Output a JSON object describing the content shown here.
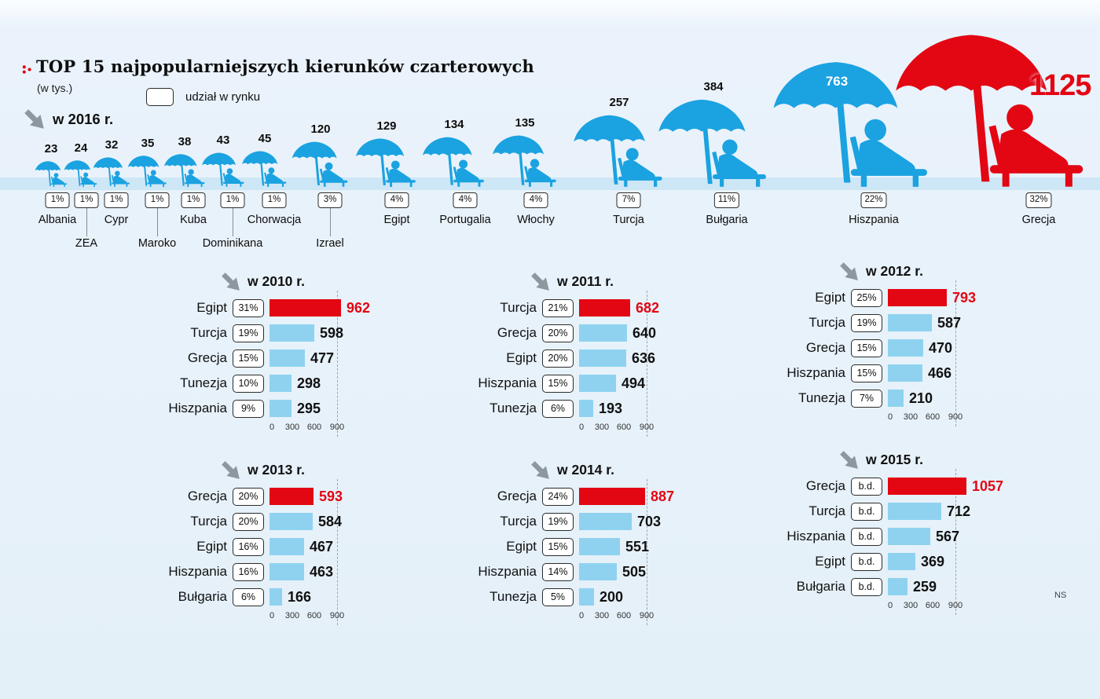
{
  "header": {
    "title": "TOP 15 najpopularniejszych kierunków czarterowych",
    "subtitle": "(w tys.)",
    "legend_label": "udział w rynku",
    "year_label": "w 2016 r."
  },
  "colors": {
    "red": "#e30613",
    "blue": "#1ba2e1",
    "bar_blue": "#8fd2f0"
  },
  "chart_data": [
    {
      "type": "pictogram-bar",
      "title": "w 2016 r.",
      "unit": "w tys.",
      "legend": "udział w rynku",
      "categories": [
        "Albania",
        "ZEA",
        "Cypr",
        "Maroko",
        "Kuba",
        "Dominikana",
        "Chorwacja",
        "Izrael",
        "Egipt",
        "Portugalia",
        "Włochy",
        "Turcja",
        "Bułgaria",
        "Hiszpania",
        "Grecja"
      ],
      "values": [
        23,
        24,
        32,
        35,
        38,
        43,
        45,
        120,
        129,
        134,
        135,
        257,
        384,
        763,
        1125
      ],
      "shares": [
        "1%",
        "1%",
        "1%",
        "1%",
        "1%",
        "1%",
        "1%",
        "3%",
        "4%",
        "4%",
        "4%",
        "7%",
        "11%",
        "22%",
        "32%"
      ],
      "highlight_index": 14
    },
    {
      "type": "bar",
      "title": "w 2010 r.",
      "categories": [
        "Egipt",
        "Turcja",
        "Grecja",
        "Tunezja",
        "Hiszpania"
      ],
      "values": [
        962,
        598,
        477,
        298,
        295
      ],
      "shares": [
        "31%",
        "19%",
        "15%",
        "10%",
        "9%"
      ],
      "xticks": [
        "0",
        "300",
        "600",
        "900"
      ],
      "xlim": [
        0,
        900
      ],
      "highlight_index": 0
    },
    {
      "type": "bar",
      "title": "w 2011 r.",
      "categories": [
        "Turcja",
        "Grecja",
        "Egipt",
        "Hiszpania",
        "Tunezja"
      ],
      "values": [
        682,
        640,
        636,
        494,
        193
      ],
      "shares": [
        "21%",
        "20%",
        "20%",
        "15%",
        "6%"
      ],
      "xticks": [
        "0",
        "300",
        "600",
        "900"
      ],
      "xlim": [
        0,
        900
      ],
      "highlight_index": 0
    },
    {
      "type": "bar",
      "title": "w 2012 r.",
      "categories": [
        "Egipt",
        "Turcja",
        "Grecja",
        "Hiszpania",
        "Tunezja"
      ],
      "values": [
        793,
        587,
        470,
        466,
        210
      ],
      "shares": [
        "25%",
        "19%",
        "15%",
        "15%",
        "7%"
      ],
      "xticks": [
        "0",
        "300",
        "600",
        "900"
      ],
      "xlim": [
        0,
        900
      ],
      "highlight_index": 0
    },
    {
      "type": "bar",
      "title": "w 2013 r.",
      "categories": [
        "Grecja",
        "Turcja",
        "Egipt",
        "Hiszpania",
        "Bułgaria"
      ],
      "values": [
        593,
        584,
        467,
        463,
        166
      ],
      "shares": [
        "20%",
        "20%",
        "16%",
        "16%",
        "6%"
      ],
      "xticks": [
        "0",
        "300",
        "600",
        "900"
      ],
      "xlim": [
        0,
        900
      ],
      "highlight_index": 0
    },
    {
      "type": "bar",
      "title": "w 2014 r.",
      "categories": [
        "Grecja",
        "Turcja",
        "Egipt",
        "Hiszpania",
        "Tunezja"
      ],
      "values": [
        887,
        703,
        551,
        505,
        200
      ],
      "shares": [
        "24%",
        "19%",
        "15%",
        "14%",
        "5%"
      ],
      "xticks": [
        "0",
        "300",
        "600",
        "900"
      ],
      "xlim": [
        0,
        900
      ],
      "highlight_index": 0
    },
    {
      "type": "bar",
      "title": "w 2015 r.",
      "categories": [
        "Grecja",
        "Turcja",
        "Hiszpania",
        "Egipt",
        "Bułgaria"
      ],
      "values": [
        1057,
        712,
        567,
        369,
        259
      ],
      "shares": [
        "b.d.",
        "b.d.",
        "b.d.",
        "b.d.",
        "b.d."
      ],
      "xticks": [
        "0",
        "300",
        "600",
        "900"
      ],
      "xlim": [
        0,
        900
      ],
      "highlight_index": 0
    }
  ],
  "footer": {
    "credit": "NS"
  }
}
